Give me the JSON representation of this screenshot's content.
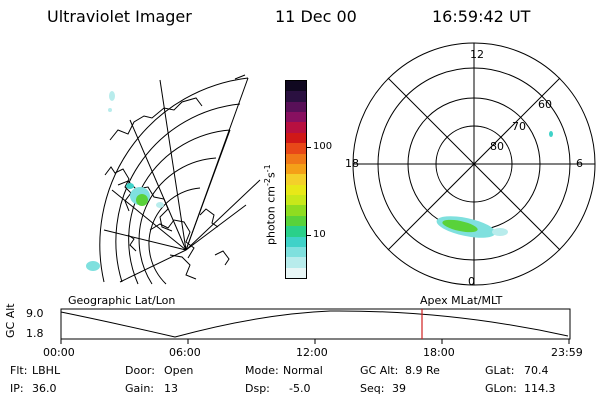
{
  "header": {
    "instrument": "Ultraviolet Imager",
    "date": "11 Dec 00",
    "time": "16:59:42 UT"
  },
  "colorbar": {
    "unit_label": "photon cm",
    "unit_exp1": "-2",
    "unit_s": "s",
    "unit_exp2": "-1",
    "tick_100": "100",
    "tick_10": "10",
    "colors": [
      "#e8f6f6",
      "#b8ecec",
      "#7fe0de",
      "#3fd2c8",
      "#2ad08a",
      "#59d23a",
      "#8fdc20",
      "#c8e81a",
      "#e8e818",
      "#f4d02a",
      "#f4a018",
      "#f07818",
      "#e84818",
      "#d01818",
      "#b81040",
      "#881060",
      "#581058",
      "#2a1040",
      "#100820"
    ]
  },
  "left_map": {
    "label": "Geographic Lat/Lon"
  },
  "right_map": {
    "label": "Apex MLat/MLT",
    "mlt_labels": {
      "top": "12",
      "left": "18",
      "right": "6",
      "bottom": "0"
    },
    "mlat_labels": [
      "60",
      "70",
      "80"
    ]
  },
  "timeline": {
    "axis_label_gc": "GC",
    "axis_label_alt": "Alt",
    "y_ticks": [
      "9.0",
      "1.8"
    ],
    "x_ticks": [
      "00:00",
      "06:00",
      "12:00",
      "18:00",
      "23:59"
    ],
    "marker_color": "#d02020"
  },
  "info": {
    "flt_label": "Flt:",
    "flt_value": "LBHL",
    "ip_label": "IP:",
    "ip_value": "36.0",
    "door_label": "Door:",
    "door_value": "Open",
    "gain_label": "Gain:",
    "gain_value": "13",
    "mode_label": "Mode:",
    "mode_value": "Normal",
    "dsp_label": "Dsp:",
    "dsp_value": "-5.0",
    "gcalt_label": "GC Alt:",
    "gcalt_value": "8.9 Re",
    "seq_label": "Seq:",
    "seq_value": "39",
    "glat_label": "GLat:",
    "glat_value": "70.4",
    "glon_label": "GLon:",
    "glon_value": "114.3"
  }
}
